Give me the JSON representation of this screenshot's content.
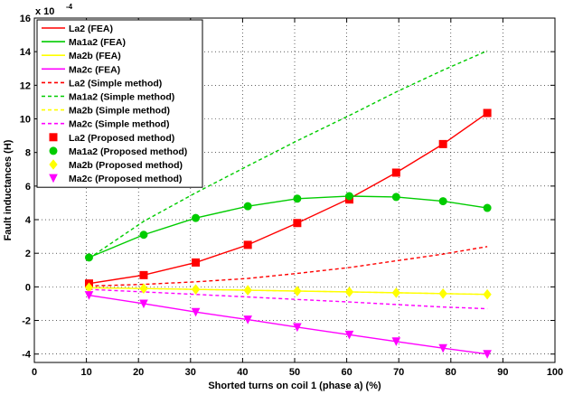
{
  "chart_data": {
    "type": "line",
    "title": "",
    "xlabel": "Shorted turns on coil 1 (phase a) (%)",
    "ylabel": "Fault inductances (H)",
    "exponent_label": "x 10",
    "exponent_power": "-4",
    "xlim": [
      0,
      100
    ],
    "ylim": [
      -4.5,
      16
    ],
    "xticks": [
      0,
      10,
      20,
      30,
      40,
      50,
      60,
      70,
      80,
      90,
      100
    ],
    "yticks": [
      -4,
      -2,
      0,
      2,
      4,
      6,
      8,
      10,
      12,
      14,
      16
    ],
    "grid": true,
    "legend_position": "top-left",
    "x": [
      10.5,
      21,
      31,
      41,
      50.5,
      60.5,
      69.5,
      78.5,
      87
    ],
    "series": [
      {
        "name": "La2 (FEA)",
        "style": "solid",
        "marker": "none",
        "color": "#ff0000",
        "values": [
          0.2,
          0.7,
          1.45,
          2.5,
          3.8,
          5.25,
          6.8,
          8.5,
          10.35
        ]
      },
      {
        "name": "Ma1a2 (FEA)",
        "style": "solid",
        "marker": "none",
        "color": "#00cc00",
        "values": [
          1.75,
          3.1,
          4.1,
          4.8,
          5.25,
          5.4,
          5.35,
          5.1,
          4.7
        ]
      },
      {
        "name": "Ma2b (FEA)",
        "style": "solid",
        "marker": "none",
        "color": "#ffff00",
        "values": [
          -0.05,
          -0.1,
          -0.15,
          -0.2,
          -0.25,
          -0.3,
          -0.35,
          -0.4,
          -0.45
        ]
      },
      {
        "name": "Ma2c  (FEA)",
        "style": "solid",
        "marker": "none",
        "color": "#ff00ff",
        "values": [
          -0.5,
          -1.0,
          -1.5,
          -1.95,
          -2.4,
          -2.85,
          -3.25,
          -3.65,
          -4.0
        ]
      },
      {
        "name": "La2 (Simple method)",
        "style": "dashed",
        "marker": "none",
        "color": "#ff0000",
        "values": [
          0.05,
          0.15,
          0.3,
          0.5,
          0.8,
          1.15,
          1.55,
          1.95,
          2.4
        ]
      },
      {
        "name": "Ma1a2 (Simple method)",
        "style": "dashed",
        "marker": "none",
        "color": "#00cc00",
        "values": [
          1.7,
          3.9,
          5.6,
          7.2,
          8.7,
          10.2,
          11.6,
          12.9,
          14.05
        ]
      },
      {
        "name": "Ma2b (Simple method)",
        "style": "dashed",
        "marker": "none",
        "color": "#ffff00",
        "values": [
          -0.05,
          -0.1,
          -0.15,
          -0.2,
          -0.25,
          -0.3,
          -0.35,
          -0.4,
          -0.45
        ]
      },
      {
        "name": "Ma2c  (Simple method)",
        "style": "dashed",
        "marker": "none",
        "color": "#ff00ff",
        "values": [
          -0.15,
          -0.3,
          -0.45,
          -0.6,
          -0.75,
          -0.9,
          -1.05,
          -1.2,
          -1.3
        ]
      },
      {
        "name": "La2 (Proposed method)",
        "style": "none",
        "marker": "square",
        "color": "#ff0000",
        "values": [
          0.2,
          0.7,
          1.45,
          2.5,
          3.8,
          5.2,
          6.8,
          8.5,
          10.35
        ]
      },
      {
        "name": "Ma1a2 (Proposed method)",
        "style": "none",
        "marker": "circle",
        "color": "#00cc00",
        "values": [
          1.75,
          3.1,
          4.1,
          4.8,
          5.25,
          5.4,
          5.35,
          5.1,
          4.7
        ]
      },
      {
        "name": "Ma2b (Proposed method)",
        "style": "none",
        "marker": "diamond",
        "color": "#ffff00",
        "values": [
          -0.05,
          -0.1,
          -0.15,
          -0.2,
          -0.25,
          -0.3,
          -0.35,
          -0.4,
          -0.45
        ]
      },
      {
        "name": "Ma2c  (Proposed method)",
        "style": "none",
        "marker": "triangle-down",
        "color": "#ff00ff",
        "values": [
          -0.5,
          -1.0,
          -1.5,
          -1.95,
          -2.4,
          -2.85,
          -3.25,
          -3.65,
          -4.0
        ]
      }
    ]
  }
}
